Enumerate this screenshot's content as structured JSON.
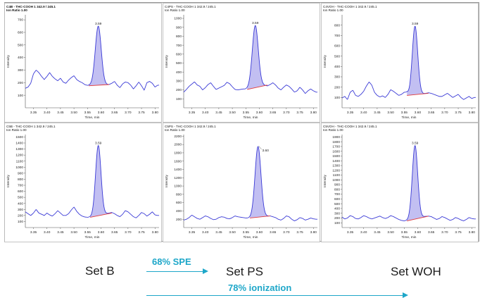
{
  "chart_data": [
    {
      "type": "line",
      "title": "C4B - THC-COOH 1  342.9 / 245.1",
      "subtitle": "Ion Ratio 1.00",
      "xlabel": "Time, min",
      "ylabel": "Intensity",
      "xlim": [
        3.32,
        3.815
      ],
      "ylim": [
        0,
        740
      ],
      "xticks": [
        "3.35",
        "3.40",
        "3.45",
        "3.50",
        "3.55",
        "3.60",
        "3.65",
        "3.70",
        "3.75",
        "3.80"
      ],
      "yticks": [
        100,
        200,
        300,
        400,
        500,
        600,
        700
      ],
      "peak": {
        "apex": 3.59,
        "height": 650,
        "width": 0.011,
        "label": "3.59"
      },
      "integration": {
        "start": [
          3.555,
          175
        ],
        "end": [
          3.63,
          185
        ]
      },
      "x": [
        3.32,
        3.33,
        3.34,
        3.35,
        3.36,
        3.37,
        3.38,
        3.39,
        3.4,
        3.41,
        3.42,
        3.43,
        3.44,
        3.45,
        3.46,
        3.47,
        3.48,
        3.49,
        3.5,
        3.51,
        3.52,
        3.53,
        3.54,
        3.55,
        3.56,
        3.57,
        3.58,
        3.59,
        3.6,
        3.61,
        3.62,
        3.63,
        3.64,
        3.65,
        3.66,
        3.67,
        3.68,
        3.69,
        3.7,
        3.71,
        3.72,
        3.73,
        3.74,
        3.75,
        3.76,
        3.77,
        3.78,
        3.79,
        3.8,
        3.81
      ],
      "y": [
        155,
        165,
        195,
        270,
        300,
        280,
        250,
        225,
        250,
        280,
        250,
        230,
        215,
        235,
        205,
        195,
        220,
        240,
        255,
        225,
        210,
        200,
        185,
        178,
        180,
        182,
        185,
        185,
        182,
        182,
        183,
        185,
        195,
        210,
        180,
        160,
        190,
        205,
        200,
        180,
        150,
        175,
        205,
        175,
        140,
        200,
        210,
        195,
        165,
        180
      ]
    },
    {
      "type": "line",
      "title": "C4PS - THC-COOH 1  342.9 / 245.1",
      "subtitle": "Ion Ratio 1.00",
      "xlabel": "Time, min",
      "ylabel": "Intensity",
      "xlim": [
        3.32,
        3.815
      ],
      "ylim": [
        0,
        1040
      ],
      "xticks": [
        "3.35",
        "3.40",
        "3.45",
        "3.50",
        "3.55",
        "3.60",
        "3.65",
        "3.70",
        "3.75",
        "3.80"
      ],
      "yticks": [
        100,
        200,
        300,
        400,
        500,
        600,
        700,
        800,
        900,
        1000
      ],
      "peak": {
        "apex": 3.585,
        "height": 920,
        "width": 0.011,
        "label": "3.59"
      },
      "integration": {
        "start": [
          3.555,
          205
        ],
        "end": [
          3.63,
          255
        ]
      },
      "x": [
        3.32,
        3.33,
        3.34,
        3.35,
        3.36,
        3.37,
        3.38,
        3.39,
        3.4,
        3.41,
        3.42,
        3.43,
        3.44,
        3.45,
        3.46,
        3.47,
        3.48,
        3.49,
        3.5,
        3.51,
        3.52,
        3.53,
        3.54,
        3.55,
        3.56,
        3.57,
        3.58,
        3.59,
        3.6,
        3.61,
        3.62,
        3.63,
        3.64,
        3.65,
        3.66,
        3.67,
        3.68,
        3.69,
        3.7,
        3.71,
        3.72,
        3.73,
        3.74,
        3.75,
        3.76,
        3.77,
        3.78,
        3.79,
        3.8,
        3.81
      ],
      "y": [
        175,
        205,
        240,
        265,
        290,
        255,
        240,
        200,
        225,
        260,
        280,
        240,
        205,
        220,
        235,
        250,
        285,
        270,
        235,
        205,
        200,
        205,
        210,
        210,
        220,
        230,
        240,
        245,
        250,
        255,
        250,
        245,
        260,
        280,
        255,
        220,
        200,
        230,
        255,
        240,
        210,
        175,
        190,
        230,
        200,
        160,
        190,
        210,
        190,
        175
      ]
    },
    {
      "type": "line",
      "title": "C4VOH - THC-COOH 1  342.9 / 245.1",
      "subtitle": "Ion Ratio 1.00",
      "xlabel": "Time, min",
      "ylabel": "Intensity",
      "xlim": [
        3.32,
        3.815
      ],
      "ylim": [
        0,
        900
      ],
      "xticks": [
        "3.35",
        "3.40",
        "3.45",
        "3.50",
        "3.55",
        "3.60",
        "3.65",
        "3.70",
        "3.75",
        "3.80"
      ],
      "yticks": [
        100,
        200,
        300,
        400,
        500,
        600,
        700,
        800
      ],
      "peak": {
        "apex": 3.59,
        "height": 790,
        "width": 0.01,
        "label": "3.59"
      },
      "integration": {
        "start": [
          3.56,
          120
        ],
        "end": [
          3.64,
          140
        ]
      },
      "x": [
        3.32,
        3.33,
        3.34,
        3.35,
        3.36,
        3.37,
        3.38,
        3.39,
        3.4,
        3.41,
        3.42,
        3.43,
        3.44,
        3.45,
        3.46,
        3.47,
        3.48,
        3.49,
        3.5,
        3.51,
        3.52,
        3.53,
        3.54,
        3.55,
        3.56,
        3.57,
        3.58,
        3.59,
        3.6,
        3.61,
        3.62,
        3.63,
        3.64,
        3.65,
        3.66,
        3.67,
        3.68,
        3.69,
        3.7,
        3.71,
        3.72,
        3.73,
        3.74,
        3.75,
        3.76,
        3.77,
        3.78,
        3.79,
        3.8,
        3.81
      ],
      "y": [
        95,
        110,
        80,
        150,
        170,
        120,
        110,
        130,
        160,
        210,
        250,
        220,
        150,
        120,
        105,
        115,
        100,
        130,
        175,
        160,
        140,
        120,
        130,
        150,
        150,
        125,
        125,
        130,
        135,
        135,
        135,
        140,
        145,
        140,
        130,
        120,
        110,
        110,
        125,
        140,
        120,
        100,
        115,
        130,
        100,
        80,
        95,
        110,
        90,
        100
      ]
    },
    {
      "type": "line",
      "title": "C5B - THC-COOH 1  342.9 / 245.1",
      "subtitle": "Ion Ratio 1.00",
      "xlabel": "Time, min",
      "ylabel": "Intensity",
      "xlim": [
        3.32,
        3.815
      ],
      "ylim": [
        0,
        1540
      ],
      "xticks": [
        "3.35",
        "3.40",
        "3.45",
        "3.50",
        "3.55",
        "3.60",
        "3.65",
        "3.70",
        "3.75",
        "3.80"
      ],
      "yticks": [
        100,
        200,
        300,
        400,
        500,
        600,
        700,
        800,
        900,
        1000,
        1100,
        1200,
        1300,
        1400,
        1500
      ],
      "peak": {
        "apex": 3.59,
        "height": 1360,
        "width": 0.01,
        "label": "3.59"
      },
      "integration": {
        "start": [
          3.56,
          170
        ],
        "end": [
          3.64,
          240
        ]
      },
      "x": [
        3.32,
        3.33,
        3.34,
        3.35,
        3.36,
        3.37,
        3.38,
        3.39,
        3.4,
        3.41,
        3.42,
        3.43,
        3.44,
        3.45,
        3.46,
        3.47,
        3.48,
        3.49,
        3.5,
        3.51,
        3.52,
        3.53,
        3.54,
        3.55,
        3.56,
        3.57,
        3.58,
        3.59,
        3.6,
        3.61,
        3.62,
        3.63,
        3.64,
        3.65,
        3.66,
        3.67,
        3.68,
        3.69,
        3.7,
        3.71,
        3.72,
        3.73,
        3.74,
        3.75,
        3.76,
        3.77,
        3.78,
        3.79,
        3.8,
        3.81
      ],
      "y": [
        260,
        230,
        200,
        240,
        300,
        240,
        220,
        200,
        240,
        210,
        190,
        230,
        280,
        240,
        200,
        200,
        230,
        290,
        340,
        270,
        220,
        190,
        175,
        170,
        175,
        180,
        190,
        200,
        210,
        220,
        230,
        240,
        250,
        230,
        200,
        180,
        220,
        280,
        260,
        220,
        180,
        160,
        200,
        250,
        230,
        190,
        220,
        260,
        210,
        200
      ]
    },
    {
      "type": "line",
      "title": "C5PS - THC-COOH 1  342.9 / 245.1",
      "subtitle": "Ion Ratio 1.00",
      "xlabel": "Time, min",
      "ylabel": "Intensity",
      "xlim": [
        3.32,
        3.815
      ],
      "ylim": [
        0,
        2240
      ],
      "xticks": [
        "3.35",
        "3.40",
        "3.45",
        "3.50",
        "3.55",
        "3.60",
        "3.65",
        "3.70",
        "3.75",
        "3.80"
      ],
      "yticks": [
        200,
        400,
        600,
        800,
        1000,
        1200,
        1400,
        1600,
        1800,
        2000,
        2200
      ],
      "peak": {
        "apex": 3.595,
        "height": 1950,
        "width": 0.011,
        "label": "3.60"
      },
      "integration": {
        "start": [
          3.565,
          230
        ],
        "end": [
          3.64,
          280
        ]
      },
      "x": [
        3.32,
        3.33,
        3.34,
        3.35,
        3.36,
        3.37,
        3.38,
        3.39,
        3.4,
        3.41,
        3.42,
        3.43,
        3.44,
        3.45,
        3.46,
        3.47,
        3.48,
        3.49,
        3.5,
        3.51,
        3.52,
        3.53,
        3.54,
        3.55,
        3.56,
        3.57,
        3.58,
        3.59,
        3.6,
        3.61,
        3.62,
        3.63,
        3.64,
        3.65,
        3.66,
        3.67,
        3.68,
        3.69,
        3.7,
        3.71,
        3.72,
        3.73,
        3.74,
        3.75,
        3.76,
        3.77,
        3.78,
        3.79,
        3.8,
        3.81
      ],
      "y": [
        180,
        200,
        240,
        300,
        260,
        220,
        200,
        240,
        280,
        260,
        220,
        190,
        200,
        240,
        260,
        250,
        220,
        210,
        240,
        280,
        260,
        250,
        240,
        230,
        230,
        235,
        240,
        245,
        255,
        262,
        270,
        275,
        280,
        260,
        240,
        200,
        180,
        220,
        280,
        260,
        200,
        160,
        190,
        240,
        220,
        180,
        200,
        230,
        210,
        200
      ]
    },
    {
      "type": "line",
      "title": "C5VOH - THC-COOH 1  342.9 / 245.1",
      "subtitle": "Ion Ratio 1.00",
      "xlabel": "Time, min",
      "ylabel": "Intensity",
      "xlim": [
        3.32,
        3.815
      ],
      "ylim": [
        0,
        1950
      ],
      "xticks": [
        "3.35",
        "3.40",
        "3.45",
        "3.50",
        "3.55",
        "3.60",
        "3.65",
        "3.70",
        "3.75",
        "3.80"
      ],
      "yticks": [
        100,
        200,
        300,
        400,
        500,
        600,
        700,
        800,
        900,
        1000,
        1100,
        1200,
        1300,
        1400,
        1500,
        1600,
        1700,
        1800,
        1900
      ],
      "peak": {
        "apex": 3.59,
        "height": 1720,
        "width": 0.01,
        "label": "3.59"
      },
      "integration": {
        "start": [
          3.56,
          140
        ],
        "end": [
          3.64,
          240
        ]
      },
      "x": [
        3.32,
        3.33,
        3.34,
        3.35,
        3.36,
        3.37,
        3.38,
        3.39,
        3.4,
        3.41,
        3.42,
        3.43,
        3.44,
        3.45,
        3.46,
        3.47,
        3.48,
        3.49,
        3.5,
        3.51,
        3.52,
        3.53,
        3.54,
        3.55,
        3.56,
        3.57,
        3.58,
        3.59,
        3.6,
        3.61,
        3.62,
        3.63,
        3.64,
        3.65,
        3.66,
        3.67,
        3.68,
        3.69,
        3.7,
        3.71,
        3.72,
        3.73,
        3.74,
        3.75,
        3.76,
        3.77,
        3.78,
        3.79,
        3.8,
        3.81
      ],
      "y": [
        220,
        180,
        200,
        250,
        230,
        190,
        180,
        210,
        250,
        230,
        200,
        180,
        200,
        220,
        240,
        210,
        190,
        210,
        250,
        230,
        200,
        170,
        150,
        140,
        150,
        165,
        180,
        195,
        205,
        215,
        225,
        235,
        240,
        230,
        200,
        170,
        190,
        230,
        210,
        180,
        150,
        170,
        210,
        190,
        160,
        140,
        170,
        210,
        190,
        180
      ]
    }
  ],
  "labels": {
    "set_b": "Set B",
    "set_ps": "Set PS",
    "set_woh": "Set WOH",
    "spe": "68% SPE",
    "ionization": "78% ionization"
  }
}
